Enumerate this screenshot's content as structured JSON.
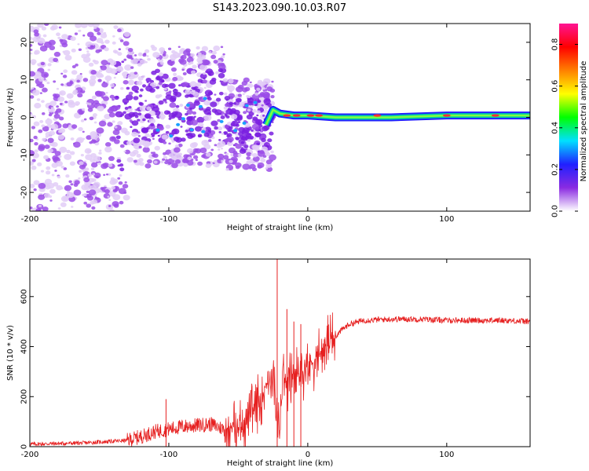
{
  "title": "S143.2023.090.10.03.R07",
  "chart_data": [
    {
      "type": "heatmap",
      "xlabel": "Height of straight line (km)",
      "ylabel": "Frequency (Hz)",
      "xlim": [
        -200,
        160
      ],
      "ylim": [
        -25,
        25
      ],
      "xticks": [
        -200,
        -100,
        0,
        100
      ],
      "yticks": [
        -20,
        -10,
        0,
        10,
        20
      ],
      "ridge": [
        [
          -30,
          -2
        ],
        [
          -25,
          2
        ],
        [
          -20,
          1
        ],
        [
          -10,
          0.5
        ],
        [
          0,
          0.5
        ],
        [
          20,
          0
        ],
        [
          60,
          0
        ],
        [
          100,
          0.5
        ],
        [
          130,
          0.5
        ],
        [
          160,
          0.5
        ]
      ],
      "colorbar": {
        "label": "Normalized spectral amplitude",
        "range": [
          0,
          0.9
        ],
        "ticks": [
          0.0,
          0.2,
          0.4,
          0.6,
          0.8
        ],
        "tick_labels": [
          "0.0",
          "0.2",
          "0.4",
          "0.6",
          "0.8"
        ],
        "colors": [
          "#ffffff",
          "#8a2be2",
          "#2020ff",
          "#00e0ff",
          "#00ff00",
          "#ffff00",
          "#ff8000",
          "#ff0000",
          "#ff1493"
        ]
      }
    },
    {
      "type": "line",
      "xlabel": "Height of straight line (km)",
      "ylabel": "SNR (10 * v/v)",
      "xlim": [
        -200,
        160
      ],
      "ylim": [
        0,
        750
      ],
      "xticks": [
        -200,
        -100,
        0,
        100
      ],
      "yticks": [
        0,
        200,
        400,
        600
      ],
      "color": "#e62020",
      "x": [
        -200,
        -160,
        -130,
        -120,
        -110,
        -100,
        -90,
        -80,
        -70,
        -60,
        -50,
        -40,
        -35,
        -30,
        -25,
        -22,
        -20,
        -18,
        -15,
        -10,
        -5,
        0,
        5,
        10,
        15,
        20,
        25,
        30,
        40,
        60,
        80,
        100,
        120,
        140,
        160
      ],
      "y": [
        10,
        15,
        25,
        40,
        60,
        70,
        80,
        85,
        90,
        70,
        80,
        130,
        180,
        250,
        300,
        80,
        60,
        300,
        260,
        280,
        300,
        320,
        350,
        380,
        420,
        440,
        470,
        490,
        505,
        510,
        510,
        505,
        505,
        505,
        500
      ],
      "spikes": [
        [
          -102,
          190
        ],
        [
          -22,
          750
        ],
        [
          -15,
          550
        ],
        [
          -10,
          500
        ],
        [
          -5,
          490
        ]
      ]
    }
  ]
}
